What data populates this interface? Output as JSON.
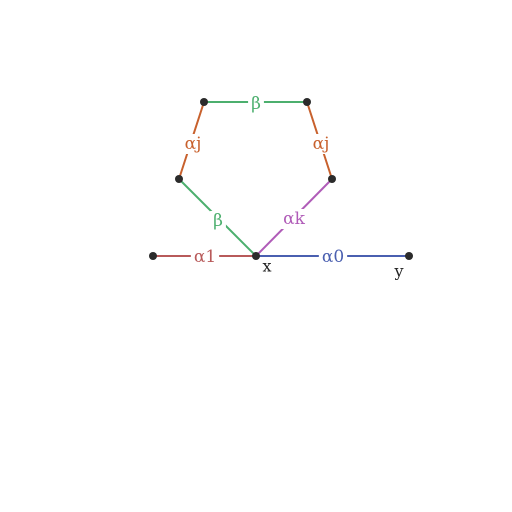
{
  "colors": {
    "green": "#4caf6e",
    "orange": "#c8612d",
    "purple": "#b05cb8",
    "red": "#b85a5a",
    "blue": "#4a5fb0"
  },
  "nodes": [
    {
      "id": "top-left",
      "label": ""
    },
    {
      "id": "top-right",
      "label": ""
    },
    {
      "id": "mid-left",
      "label": ""
    },
    {
      "id": "mid-right",
      "label": ""
    },
    {
      "id": "x",
      "label": "x"
    },
    {
      "id": "far-left",
      "label": ""
    },
    {
      "id": "y",
      "label": "y"
    }
  ],
  "edges": [
    {
      "from": "top-left",
      "to": "top-right",
      "label": "β",
      "color": "green"
    },
    {
      "from": "top-left",
      "to": "mid-left",
      "label": "αj",
      "color": "orange"
    },
    {
      "from": "top-right",
      "to": "mid-right",
      "label": "αj",
      "color": "orange"
    },
    {
      "from": "mid-left",
      "to": "x",
      "label": "β",
      "color": "green"
    },
    {
      "from": "mid-right",
      "to": "x",
      "label": "αk",
      "color": "purple"
    },
    {
      "from": "far-left",
      "to": "x",
      "label": "α1",
      "color": "red"
    },
    {
      "from": "x",
      "to": "y",
      "label": "α0",
      "color": "blue"
    }
  ]
}
